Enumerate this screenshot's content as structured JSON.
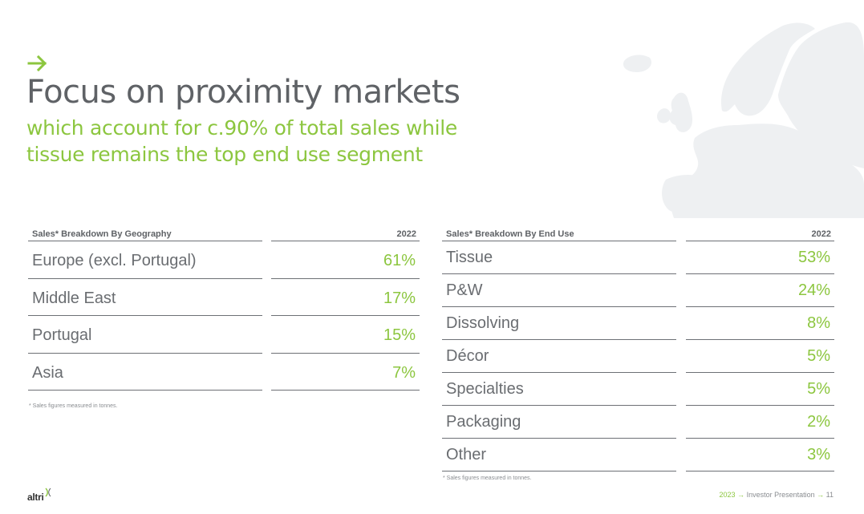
{
  "header": {
    "title": "Focus on proximity markets",
    "subtitle": "which account for c.90% of total sales while tissue remains the top end use segment"
  },
  "geography_table": {
    "header_label": "Sales* Breakdown By Geography",
    "header_year": "2022",
    "rows": [
      {
        "label": "Europe (excl. Portugal)",
        "value": "61%"
      },
      {
        "label": "Middle East",
        "value": "17%"
      },
      {
        "label": "Portugal",
        "value": "15%"
      },
      {
        "label": "Asia",
        "value": "7%"
      }
    ],
    "footnote": "* Sales figures measured in tonnes."
  },
  "end_use_table": {
    "header_label": "Sales* Breakdown By End Use",
    "header_year": "2022",
    "rows": [
      {
        "label": "Tissue",
        "value": "53%"
      },
      {
        "label": "P&W",
        "value": "24%"
      },
      {
        "label": "Dissolving",
        "value": "8%"
      },
      {
        "label": "Décor",
        "value": "5%"
      },
      {
        "label": "Specialties",
        "value": "5%"
      },
      {
        "label": "Packaging",
        "value": "2%"
      },
      {
        "label": "Other",
        "value": "3%"
      }
    ],
    "footnote": "* Sales figures measured in tonnes."
  },
  "footer": {
    "logo": "altri",
    "year": "2023",
    "arrow": "→",
    "presentation": "Investor Presentation",
    "page": "11"
  },
  "colors": {
    "accent": "#8cc63f",
    "text": "#5f6266",
    "map": "#eef0f2"
  },
  "icons": {
    "title_arrow": "arrow-right-icon",
    "background": "europe-map"
  }
}
